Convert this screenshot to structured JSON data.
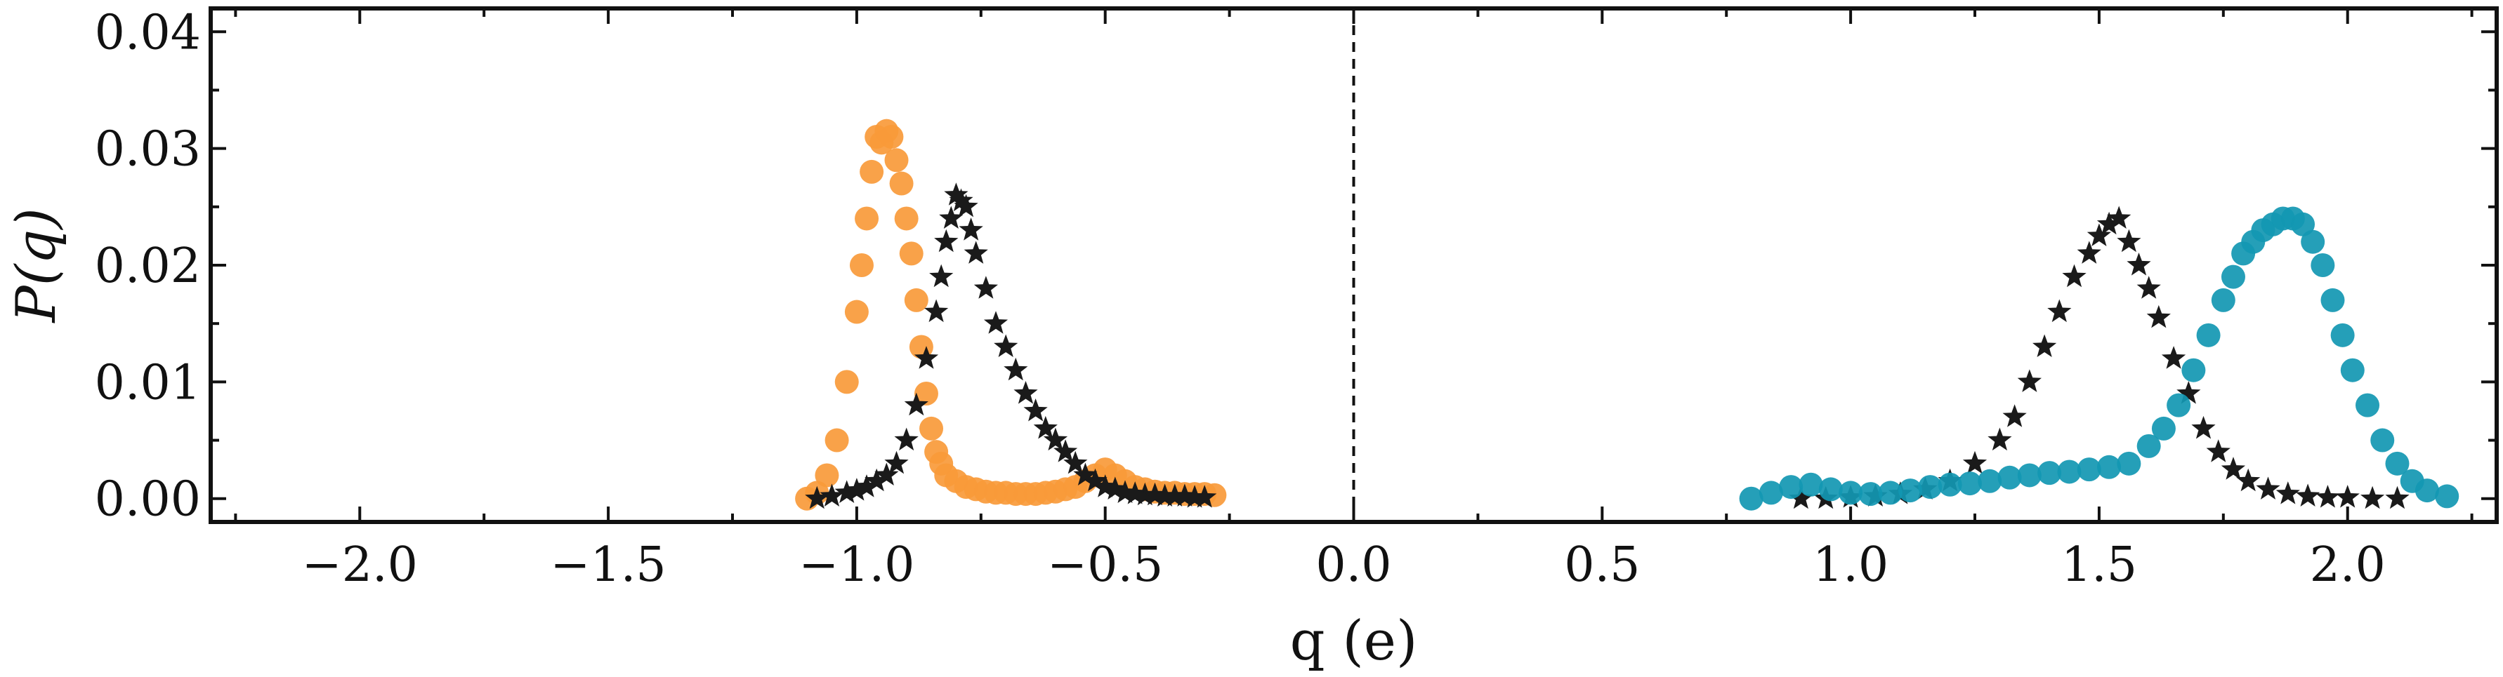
{
  "chart_data": {
    "type": "scatter",
    "xlabel": "q (e)",
    "ylabel": "P(q)",
    "xlim": [
      -2.3,
      2.3
    ],
    "ylim": [
      -0.002,
      0.042
    ],
    "grid": false,
    "legend": "none",
    "reference_lines": [
      {
        "orientation": "vertical",
        "x": 0.0,
        "style": "dashed"
      }
    ],
    "x_ticks": [
      "−2.0",
      "−1.5",
      "−1.0",
      "−0.5",
      "0.0",
      "0.5",
      "1.0",
      "1.5",
      "2.0"
    ],
    "x_tick_values": [
      -2.0,
      -1.5,
      -1.0,
      -0.5,
      0.0,
      0.5,
      1.0,
      1.5,
      2.0
    ],
    "y_ticks": [
      "0.00",
      "0.01",
      "0.02",
      "0.03",
      "0.04"
    ],
    "y_tick_values": [
      0.0,
      0.01,
      0.02,
      0.03,
      0.04
    ],
    "series": [
      {
        "marker": "circle",
        "color": "#f99a3a",
        "x": [
          -1.1,
          -1.08,
          -1.06,
          -1.04,
          -1.02,
          -1.0,
          -0.99,
          -0.98,
          -0.97,
          -0.96,
          -0.95,
          -0.94,
          -0.93,
          -0.92,
          -0.91,
          -0.9,
          -0.89,
          -0.88,
          -0.87,
          -0.86,
          -0.85,
          -0.84,
          -0.83,
          -0.82,
          -0.8,
          -0.78,
          -0.76,
          -0.74,
          -0.72,
          -0.7,
          -0.68,
          -0.66,
          -0.64,
          -0.62,
          -0.6,
          -0.58,
          -0.56,
          -0.54,
          -0.52,
          -0.5,
          -0.48,
          -0.46,
          -0.44,
          -0.42,
          -0.4,
          -0.38,
          -0.36,
          -0.34,
          -0.32,
          -0.3,
          -0.28
        ],
        "y": [
          0.0,
          0.0005,
          0.002,
          0.005,
          0.01,
          0.016,
          0.02,
          0.024,
          0.028,
          0.031,
          0.0305,
          0.0315,
          0.031,
          0.029,
          0.027,
          0.024,
          0.021,
          0.017,
          0.013,
          0.009,
          0.006,
          0.004,
          0.003,
          0.002,
          0.0015,
          0.001,
          0.0008,
          0.0006,
          0.0005,
          0.0005,
          0.0004,
          0.0004,
          0.0004,
          0.0005,
          0.0006,
          0.0008,
          0.001,
          0.0015,
          0.002,
          0.0025,
          0.002,
          0.0015,
          0.001,
          0.0008,
          0.0006,
          0.0005,
          0.0005,
          0.0004,
          0.0004,
          0.0004,
          0.0003
        ]
      },
      {
        "marker": "star",
        "color": "#1a1a1a",
        "x": [
          -1.08,
          -1.05,
          -1.02,
          -1.0,
          -0.98,
          -0.96,
          -0.94,
          -0.92,
          -0.9,
          -0.88,
          -0.86,
          -0.84,
          -0.83,
          -0.82,
          -0.81,
          -0.8,
          -0.79,
          -0.78,
          -0.77,
          -0.76,
          -0.74,
          -0.72,
          -0.7,
          -0.68,
          -0.66,
          -0.64,
          -0.62,
          -0.6,
          -0.58,
          -0.56,
          -0.54,
          -0.52,
          -0.5,
          -0.48,
          -0.46,
          -0.44,
          -0.42,
          -0.4,
          -0.38,
          -0.36,
          -0.34,
          -0.32,
          -0.3
        ],
        "y": [
          0.0,
          0.0002,
          0.0005,
          0.0007,
          0.001,
          0.0015,
          0.002,
          0.003,
          0.005,
          0.008,
          0.012,
          0.016,
          0.019,
          0.022,
          0.024,
          0.026,
          0.0255,
          0.025,
          0.023,
          0.021,
          0.018,
          0.015,
          0.013,
          0.011,
          0.009,
          0.0075,
          0.006,
          0.005,
          0.004,
          0.003,
          0.002,
          0.0015,
          0.001,
          0.0008,
          0.0005,
          0.0004,
          0.0003,
          0.0003,
          0.0002,
          0.0002,
          0.0002,
          0.0001,
          0.0001
        ]
      },
      {
        "marker": "star",
        "color": "#1a1a1a",
        "x": [
          0.9,
          0.95,
          1.0,
          1.05,
          1.1,
          1.15,
          1.2,
          1.25,
          1.3,
          1.33,
          1.36,
          1.39,
          1.42,
          1.45,
          1.48,
          1.5,
          1.52,
          1.54,
          1.56,
          1.58,
          1.6,
          1.62,
          1.65,
          1.68,
          1.71,
          1.74,
          1.77,
          1.8,
          1.84,
          1.88,
          1.92,
          1.96,
          2.0,
          2.05,
          2.1
        ],
        "y": [
          0.0,
          0.0,
          0.0001,
          0.0002,
          0.0004,
          0.0008,
          0.0015,
          0.003,
          0.005,
          0.007,
          0.01,
          0.013,
          0.016,
          0.019,
          0.021,
          0.0225,
          0.0235,
          0.024,
          0.022,
          0.02,
          0.018,
          0.0155,
          0.012,
          0.009,
          0.006,
          0.004,
          0.0025,
          0.0015,
          0.0008,
          0.0004,
          0.0002,
          0.0001,
          0.0001,
          0.0,
          0.0
        ]
      },
      {
        "marker": "circle",
        "color": "#1297b2",
        "x": [
          0.8,
          0.84,
          0.88,
          0.92,
          0.96,
          1.0,
          1.04,
          1.08,
          1.12,
          1.16,
          1.2,
          1.24,
          1.28,
          1.32,
          1.36,
          1.4,
          1.44,
          1.48,
          1.52,
          1.56,
          1.6,
          1.63,
          1.66,
          1.69,
          1.72,
          1.75,
          1.77,
          1.79,
          1.81,
          1.83,
          1.85,
          1.87,
          1.89,
          1.91,
          1.93,
          1.95,
          1.97,
          1.99,
          2.01,
          2.04,
          2.07,
          2.1,
          2.13,
          2.16,
          2.2
        ],
        "y": [
          0.0,
          0.0005,
          0.001,
          0.0012,
          0.0008,
          0.0005,
          0.0004,
          0.0005,
          0.0007,
          0.001,
          0.0012,
          0.0013,
          0.0015,
          0.0018,
          0.002,
          0.0022,
          0.0023,
          0.0025,
          0.0027,
          0.003,
          0.0045,
          0.006,
          0.008,
          0.011,
          0.014,
          0.017,
          0.019,
          0.021,
          0.022,
          0.023,
          0.0235,
          0.024,
          0.024,
          0.0235,
          0.022,
          0.02,
          0.017,
          0.014,
          0.011,
          0.008,
          0.005,
          0.003,
          0.0015,
          0.0007,
          0.0002
        ]
      }
    ]
  }
}
